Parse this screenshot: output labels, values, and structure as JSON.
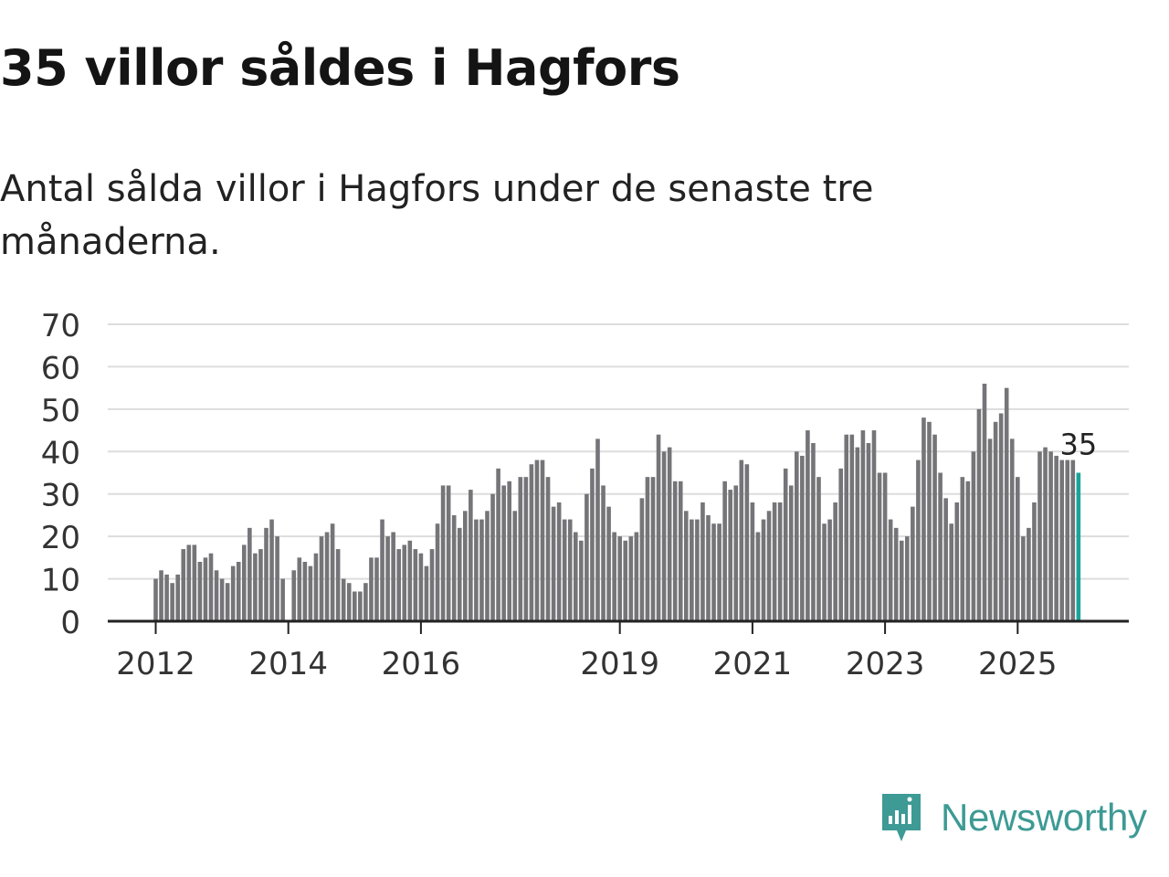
{
  "title": "35 villor såldes i Hagfors",
  "subtitle": "Antal sålda villor i Hagfors under de senaste tre månaderna.",
  "brand": {
    "name": "Newsworthy",
    "icon": "newsworthy-logo-icon",
    "color": "#3d9a94"
  },
  "colors": {
    "bar": "#757478",
    "highlight": "#1aa39a",
    "grid": "#dddddd",
    "axis": "#222222"
  },
  "chart_data": {
    "type": "bar",
    "title": "35 villor såldes i Hagfors",
    "xlabel": "",
    "ylabel": "",
    "ylim": [
      0,
      70
    ],
    "yticks": [
      "0",
      "10",
      "20",
      "30",
      "40",
      "50",
      "60",
      "70"
    ],
    "xticks": [
      {
        "label": "2012",
        "index": 0
      },
      {
        "label": "2014",
        "index": 24
      },
      {
        "label": "2016",
        "index": 48
      },
      {
        "label": "2019",
        "index": 84
      },
      {
        "label": "2021",
        "index": 108
      },
      {
        "label": "2023",
        "index": 132
      },
      {
        "label": "2025",
        "index": 156
      }
    ],
    "start": "2012-01",
    "values": [
      10,
      12,
      11,
      9,
      11,
      17,
      18,
      18,
      14,
      15,
      16,
      12,
      10,
      9,
      13,
      14,
      18,
      22,
      16,
      17,
      22,
      24,
      20,
      10,
      null,
      12,
      15,
      14,
      13,
      16,
      20,
      21,
      23,
      17,
      10,
      9,
      7,
      7,
      9,
      15,
      15,
      24,
      20,
      21,
      17,
      18,
      19,
      17,
      16,
      13,
      17,
      23,
      32,
      32,
      25,
      22,
      26,
      31,
      24,
      24,
      26,
      30,
      36,
      32,
      33,
      26,
      34,
      34,
      37,
      38,
      38,
      34,
      27,
      28,
      24,
      24,
      21,
      19,
      30,
      36,
      43,
      32,
      27,
      21,
      20,
      19,
      20,
      21,
      29,
      34,
      34,
      44,
      40,
      41,
      33,
      33,
      26,
      24,
      24,
      28,
      25,
      23,
      23,
      33,
      31,
      32,
      38,
      37,
      28,
      21,
      24,
      26,
      28,
      28,
      36,
      32,
      40,
      39,
      45,
      42,
      34,
      23,
      24,
      28,
      36,
      44,
      44,
      41,
      45,
      42,
      45,
      35,
      35,
      24,
      22,
      19,
      20,
      27,
      38,
      48,
      47,
      44,
      35,
      29,
      23,
      28,
      34,
      33,
      40,
      50,
      56,
      43,
      47,
      49,
      55,
      43,
      34,
      20,
      22,
      28,
      40,
      41,
      40,
      39,
      38,
      38,
      38,
      35
    ],
    "highlight_label": "35"
  }
}
